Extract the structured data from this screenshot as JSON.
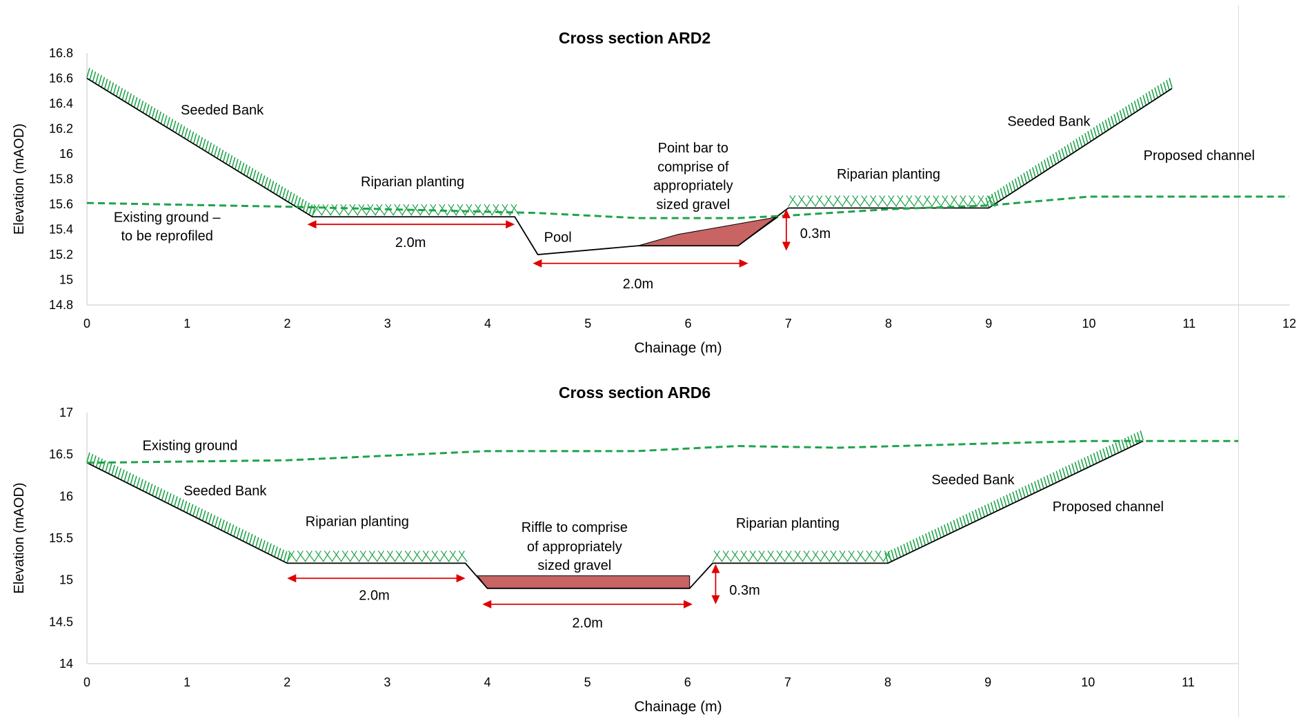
{
  "chart_data": [
    {
      "type": "line",
      "title": "Cross section ARD2",
      "xlabel": "Chainage (m)",
      "ylabel": "Elevation (mAOD)",
      "xlim": [
        0,
        12
      ],
      "ylim": [
        14.8,
        16.8
      ],
      "x_ticks": [
        "0",
        "1",
        "2",
        "3",
        "4",
        "5",
        "6",
        "7",
        "8",
        "9",
        "10",
        "11",
        "12"
      ],
      "y_ticks": [
        "14.8",
        "15",
        "15.2",
        "15.4",
        "15.6",
        "15.8",
        "16",
        "16.2",
        "16.4",
        "16.6",
        "16.8"
      ],
      "grid": false,
      "series": [
        {
          "name": "Proposed channel",
          "style": "solid",
          "color": "#000000",
          "points": [
            [
              0,
              16.6
            ],
            [
              2.25,
              15.5
            ],
            [
              4.27,
              15.5
            ],
            [
              4.5,
              15.2
            ],
            [
              5.5,
              15.27
            ],
            [
              6.5,
              15.27
            ],
            [
              7,
              15.57
            ],
            [
              9,
              15.57
            ],
            [
              10.83,
              16.52
            ]
          ]
        },
        {
          "name": "Existing ground – to be reprofiled",
          "style": "dashed",
          "color": "#1ea34a",
          "points": [
            [
              0,
              15.61
            ],
            [
              2,
              15.58
            ],
            [
              4.5,
              15.53
            ],
            [
              5.5,
              15.49
            ],
            [
              6.5,
              15.49
            ],
            [
              7,
              15.51
            ],
            [
              8,
              15.56
            ],
            [
              9,
              15.59
            ],
            [
              10,
              15.66
            ],
            [
              12,
              15.66
            ]
          ]
        }
      ],
      "features": [
        {
          "kind": "point_bar_gravel",
          "color": "#c86464",
          "points": [
            [
              5.5,
              15.27
            ],
            [
              6.5,
              15.27
            ],
            [
              6.9,
              15.5
            ],
            [
              5.9,
              15.36
            ]
          ]
        }
      ],
      "annotations": [
        {
          "text": "Seeded Bank",
          "x": 1.35,
          "y": 16.35
        },
        {
          "text": "Riparian planting",
          "x": 3.25,
          "y": 15.78
        },
        {
          "text": "Point bar to",
          "x": 6.05,
          "y": 16.05
        },
        {
          "text": "comprise of",
          "x": 6.05,
          "y": 15.9
        },
        {
          "text": "appropriately",
          "x": 6.05,
          "y": 15.75
        },
        {
          "text": "sized gravel",
          "x": 6.05,
          "y": 15.6
        },
        {
          "text": "Riparian planting",
          "x": 8.0,
          "y": 15.84
        },
        {
          "text": "Seeded Bank",
          "x": 9.6,
          "y": 16.26
        },
        {
          "text": "Proposed channel",
          "x": 11.1,
          "y": 15.99
        },
        {
          "text": "Existing ground –",
          "x": 0.8,
          "y": 15.5
        },
        {
          "text": "to be reprofiled",
          "x": 0.8,
          "y": 15.35
        },
        {
          "text": "Pool",
          "x": 4.7,
          "y": 15.34
        }
      ],
      "dimensions": [
        {
          "label": "2.0m",
          "orientation": "h",
          "from": 2.2,
          "to": 4.27,
          "at": 15.44,
          "label_x": 3.23,
          "label_y": 15.3
        },
        {
          "label": "2.0m",
          "orientation": "h",
          "from": 4.45,
          "to": 6.6,
          "at": 15.13,
          "label_x": 5.5,
          "label_y": 14.97
        },
        {
          "label": "0.3m",
          "orientation": "v",
          "from": 15.23,
          "to": 15.56,
          "at": 6.98,
          "label_x": 7.27,
          "label_y": 15.37
        }
      ]
    },
    {
      "type": "line",
      "title": "Cross section ARD6",
      "xlabel": "Chainage (m)",
      "ylabel": "Elevation (mAOD)",
      "xlim": [
        0,
        11.5
      ],
      "ylim": [
        14,
        17
      ],
      "x_ticks": [
        "0",
        "1",
        "2",
        "3",
        "4",
        "5",
        "6",
        "7",
        "8",
        "9",
        "10",
        "11"
      ],
      "y_ticks": [
        "14",
        "14.5",
        "15",
        "15.5",
        "16",
        "16.5",
        "17"
      ],
      "grid": false,
      "series": [
        {
          "name": "Proposed channel",
          "style": "solid",
          "color": "#000000",
          "points": [
            [
              0,
              16.4
            ],
            [
              2,
              15.2
            ],
            [
              3.78,
              15.2
            ],
            [
              4,
              14.9
            ],
            [
              6.02,
              14.9
            ],
            [
              6.25,
              15.2
            ],
            [
              8,
              15.2
            ],
            [
              10.55,
              16.66
            ]
          ]
        },
        {
          "name": "Existing ground",
          "style": "dashed",
          "color": "#1ea34a",
          "points": [
            [
              0,
              16.4
            ],
            [
              2,
              16.43
            ],
            [
              4,
              16.54
            ],
            [
              5.5,
              16.54
            ],
            [
              6.5,
              16.6
            ],
            [
              7.5,
              16.58
            ],
            [
              9,
              16.63
            ],
            [
              10,
              16.66
            ],
            [
              11.5,
              16.66
            ]
          ]
        }
      ],
      "features": [
        {
          "kind": "riffle_gravel",
          "color": "#c86464",
          "points": [
            [
              3.9,
              15.05
            ],
            [
              6.02,
              15.05
            ],
            [
              6.02,
              14.9
            ],
            [
              4,
              14.9
            ]
          ]
        }
      ],
      "annotations": [
        {
          "text": "Existing ground",
          "x": 1.03,
          "y": 16.61
        },
        {
          "text": "Seeded Bank",
          "x": 1.38,
          "y": 16.07
        },
        {
          "text": "Riparian planting",
          "x": 2.7,
          "y": 15.7
        },
        {
          "text": "Riffle to comprise",
          "x": 4.87,
          "y": 15.63
        },
        {
          "text": "of appropriately",
          "x": 4.87,
          "y": 15.4
        },
        {
          "text": "sized gravel",
          "x": 4.87,
          "y": 15.18
        },
        {
          "text": "Riparian planting",
          "x": 7.0,
          "y": 15.68
        },
        {
          "text": "Seeded Bank",
          "x": 8.85,
          "y": 16.2
        },
        {
          "text": "Proposed channel",
          "x": 10.2,
          "y": 15.88
        },
        {
          "text": "Riparian planting",
          "x": 2.7,
          "y": 15.7
        }
      ],
      "dimensions": [
        {
          "label": "2.0m",
          "orientation": "h",
          "from": 2.0,
          "to": 3.78,
          "at": 15.02,
          "label_x": 2.87,
          "label_y": 14.82
        },
        {
          "label": "2.0m",
          "orientation": "h",
          "from": 3.95,
          "to": 6.05,
          "at": 14.71,
          "label_x": 5.0,
          "label_y": 14.49
        },
        {
          "label": "0.3m",
          "orientation": "v",
          "from": 14.71,
          "to": 15.19,
          "at": 6.28,
          "label_x": 6.57,
          "label_y": 14.88
        }
      ]
    }
  ]
}
